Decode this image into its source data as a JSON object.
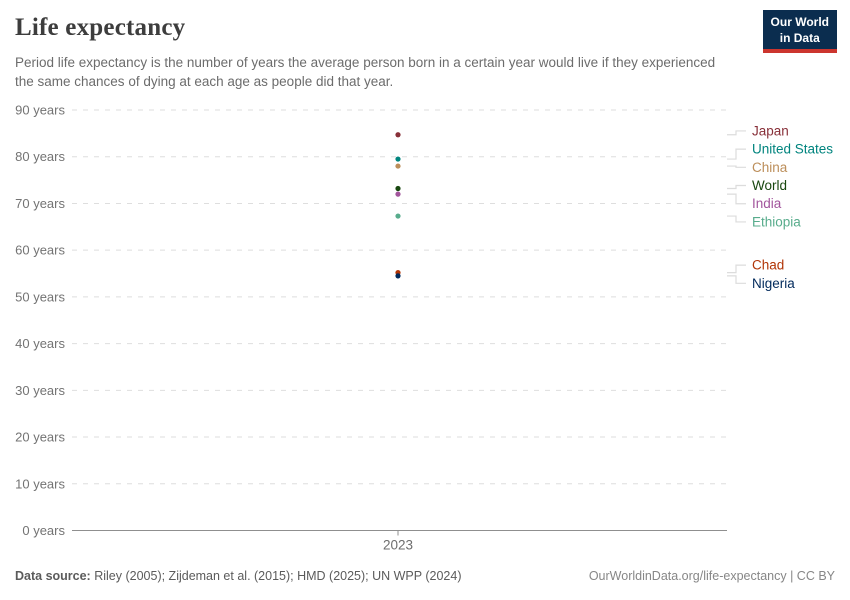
{
  "header": {
    "title": "Life expectancy",
    "subtitle": "Period life expectancy is the number of years the average person born in a certain year would live if they experienced the same chances of dying at each age as people did that year.",
    "logo": {
      "line1": "Our World",
      "line2": "in Data"
    }
  },
  "chart_data": {
    "type": "scatter",
    "title": "Life expectancy",
    "x": [
      "2023"
    ],
    "xlabel": "",
    "ylabel": "",
    "ylim": [
      0,
      90
    ],
    "y_tick_interval": 10,
    "y_tick_suffix": " years",
    "y_tick_labels": [
      "0 years",
      "10 years",
      "20 years",
      "30 years",
      "40 years",
      "50 years",
      "60 years",
      "70 years",
      "80 years",
      "90 years"
    ],
    "grid": "dashed-horizontal",
    "legend_position": "right",
    "series": [
      {
        "name": "Japan",
        "value": 84.7,
        "color": "#883039"
      },
      {
        "name": "United States",
        "value": 79.5,
        "color": "#00847E"
      },
      {
        "name": "China",
        "value": 78.0,
        "color": "#BC8E5A"
      },
      {
        "name": "World",
        "value": 73.2,
        "color": "#18470F"
      },
      {
        "name": "India",
        "value": 72.0,
        "color": "#A2559C"
      },
      {
        "name": "Ethiopia",
        "value": 67.3,
        "color": "#58AC8C"
      },
      {
        "name": "Chad",
        "value": 55.2,
        "color": "#B13507"
      },
      {
        "name": "Nigeria",
        "value": 54.5,
        "color": "#00295B"
      }
    ]
  },
  "footer": {
    "source_label": "Data source:",
    "source_text": "Riley (2005); Zijdeman et al. (2015); HMD (2025); UN WPP (2024)",
    "rights_text": "OurWorldinData.org/life-expectancy | CC BY"
  },
  "colors": {
    "axis": "#8f8f8f",
    "grid": "#dedede",
    "connector": "#dcdcdc",
    "tick_text": "#737373",
    "logo_bg": "#0b2d4f",
    "logo_accent": "#cc352e"
  }
}
